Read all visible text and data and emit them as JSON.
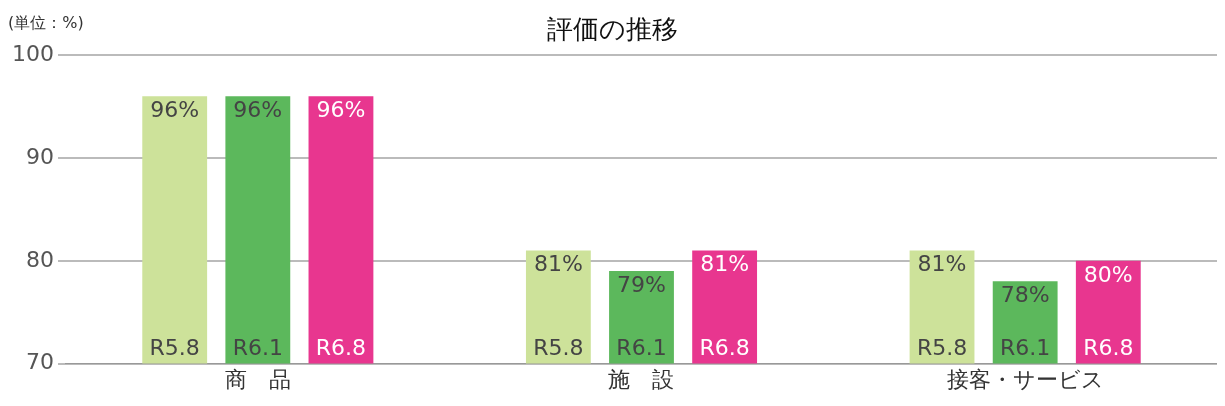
{
  "chart_data": {
    "type": "bar",
    "title": "評価の推移",
    "ylabel": "(単位：%)",
    "categories": [
      "商　品",
      "施　設",
      "接客・サービス"
    ],
    "series": [
      {
        "name": "R5.8",
        "color": "#cde29a",
        "values": [
          96,
          81,
          81
        ],
        "value_labels": [
          "96%",
          "81%",
          "81%"
        ]
      },
      {
        "name": "R6.1",
        "color": "#5cb85c",
        "values": [
          96,
          79,
          78
        ],
        "value_labels": [
          "96%",
          "79%",
          "78%"
        ]
      },
      {
        "name": "R6.8",
        "color": "#e8368f",
        "values": [
          96,
          81,
          80
        ],
        "value_labels": [
          "96%",
          "81%",
          "80%"
        ]
      }
    ],
    "ylim": [
      70,
      100
    ],
    "yticks": [
      70,
      80,
      90,
      100
    ],
    "grid": "y",
    "legend": false
  }
}
